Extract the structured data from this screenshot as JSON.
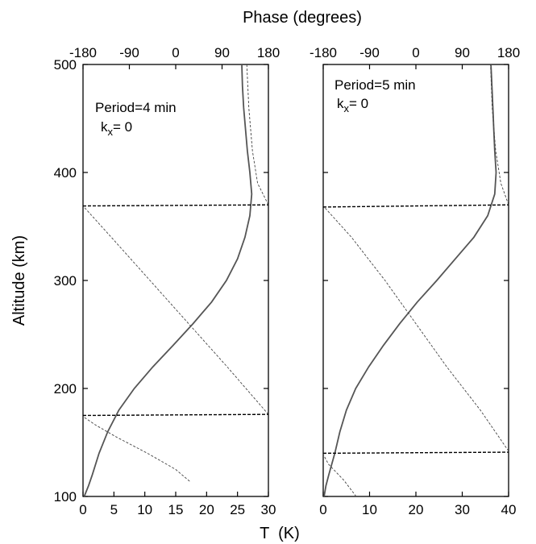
{
  "figure": {
    "top_axis_title": "Phase (degrees)",
    "y_axis_title": "Altitude (km)",
    "bottom_axis_title": "T  (K)"
  },
  "chart_data": [
    {
      "type": "line",
      "annotation_line1": "Period=4 min",
      "annotation_k": "k",
      "annotation_sub": "x",
      "annotation_rest": "= 0",
      "xlim_T": [
        0,
        30
      ],
      "xticks_T": [
        "0",
        "5",
        "10",
        "15",
        "20",
        "25",
        "30"
      ],
      "xlim_phase": [
        -180,
        180
      ],
      "xticks_phase": [
        "-180",
        "-90",
        "0",
        "90",
        "180"
      ],
      "ylim": [
        100,
        500
      ],
      "yticks": [
        "100",
        "200",
        "300",
        "400",
        "500"
      ],
      "grid": false,
      "amplitude": {
        "altitude": [
          100,
          110,
          120,
          140,
          160,
          180,
          200,
          220,
          240,
          260,
          280,
          300,
          320,
          340,
          360,
          380,
          400,
          420,
          440,
          460,
          480,
          500
        ],
        "T": [
          0.2,
          0.9,
          1.5,
          2.6,
          4.0,
          5.8,
          8.3,
          11.3,
          14.6,
          17.8,
          20.8,
          23.2,
          25.0,
          26.2,
          27.0,
          27.3,
          27.0,
          26.6,
          26.3,
          26.0,
          25.8,
          25.7
        ]
      },
      "phase_segments": [
        {
          "altitude": [
            114,
            125,
            140,
            155,
            166,
            174
          ],
          "phase": [
            27,
            0,
            -55,
            -115,
            -155,
            -180
          ]
        },
        {
          "altitude": [
            176,
            220,
            260,
            300,
            340,
            369
          ],
          "phase": [
            180,
            100,
            25,
            -50,
            -125,
            -180
          ]
        },
        {
          "altitude": [
            370,
            390,
            420,
            460,
            500
          ],
          "phase": [
            180,
            159,
            149,
            142,
            138
          ]
        }
      ],
      "phase_jumps": [
        {
          "altitude_left": 175,
          "altitude_right": 176
        },
        {
          "altitude_left": 369,
          "altitude_right": 370
        }
      ]
    },
    {
      "type": "line",
      "annotation_line1": "Period=5 min",
      "annotation_k": "k",
      "annotation_sub": "x",
      "annotation_rest": "= 0",
      "xlim_T": [
        0,
        40
      ],
      "xticks_T": [
        "0",
        "10",
        "20",
        "30",
        "40"
      ],
      "xlim_phase": [
        -180,
        180
      ],
      "xticks_phase": [
        "-180",
        "-90",
        "0",
        "90",
        "180"
      ],
      "ylim": [
        100,
        500
      ],
      "yticks": [
        "100",
        "200",
        "300",
        "400",
        "500"
      ],
      "grid": false,
      "amplitude": {
        "altitude": [
          100,
          110,
          120,
          140,
          160,
          180,
          200,
          220,
          240,
          260,
          280,
          300,
          320,
          340,
          360,
          380,
          400,
          420,
          440,
          460,
          480,
          500
        ],
        "T": [
          0.2,
          0.6,
          1.2,
          2.5,
          3.6,
          5.0,
          7.0,
          9.8,
          13.0,
          16.5,
          20.3,
          24.5,
          28.5,
          32.5,
          35.5,
          37.0,
          37.3,
          37.0,
          36.8,
          36.6,
          36.4,
          36.2
        ]
      },
      "phase_segments": [
        {
          "altitude": [
            100,
            115,
            130,
            139
          ],
          "phase": [
            -116,
            -140,
            -170,
            -180
          ]
        },
        {
          "altitude": [
            142,
            180,
            220,
            260,
            300,
            340,
            369
          ],
          "phase": [
            180,
            125,
            60,
            0,
            -60,
            -125,
            -180
          ]
        },
        {
          "altitude": [
            370,
            390,
            420,
            460,
            500
          ],
          "phase": [
            180,
            165,
            155,
            148,
            145
          ]
        }
      ],
      "phase_jumps": [
        {
          "altitude_left": 140,
          "altitude_right": 141
        },
        {
          "altitude_left": 368,
          "altitude_right": 370
        }
      ]
    }
  ]
}
